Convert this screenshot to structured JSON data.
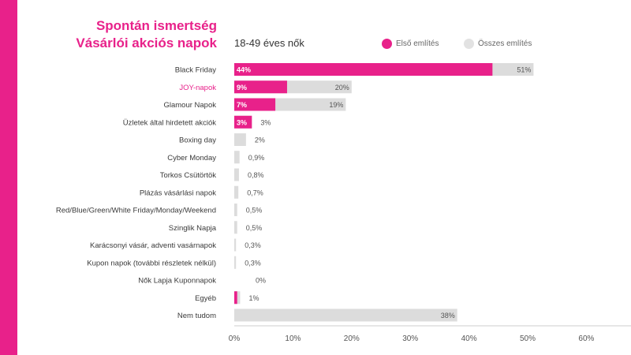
{
  "header": {
    "title_line1": "Spontán ismertség",
    "title_line2": "Vásárlói akciós napok",
    "subtitle": "18-49 éves nők"
  },
  "colors": {
    "accent": "#e8218a",
    "total": "#dcdcdc",
    "text": "#3a3a3a"
  },
  "chart_data": {
    "type": "bar",
    "orientation": "horizontal",
    "categories": [
      "Black Friday",
      "JOY-napok",
      "Glamour Napok",
      "Üzletek által hirdetett akciók",
      "Boxing day",
      "Cyber Monday",
      "Torkos Csütörtök",
      "Plázás vásárlási napok",
      "Red/Blue/Green/White Friday/Monday/Weekend",
      "Szinglik Napja",
      "Karácsonyi vásár, adventi vasárnapok",
      "Kupon napok (további részletek nélkül)",
      "Nők Lapja Kuponnapok",
      "Egyéb",
      "Nem tudom"
    ],
    "highlight_category": "JOY-napok",
    "series": [
      {
        "name": "Első említés",
        "color": "#e8218a",
        "values": [
          44,
          9,
          7,
          3,
          null,
          null,
          null,
          null,
          null,
          null,
          null,
          null,
          null,
          0.5,
          null
        ],
        "labels": [
          "44%",
          "9%",
          "7%",
          "3%",
          "",
          "",
          "",
          "",
          "",
          "",
          "",
          "",
          "",
          "",
          ""
        ]
      },
      {
        "name": "Összes említés",
        "color": "#dcdcdc",
        "values": [
          51,
          20,
          19,
          3,
          2,
          0.9,
          0.8,
          0.7,
          0.5,
          0.5,
          0.3,
          0.3,
          0,
          1,
          38
        ],
        "labels": [
          "51%",
          "20%",
          "19%",
          "3%",
          "2%",
          "0,9%",
          "0,8%",
          "0,7%",
          "0,5%",
          "0,5%",
          "0,3%",
          "0,3%",
          "0%",
          "1%",
          "38%"
        ]
      }
    ],
    "xlim": [
      0,
      60
    ],
    "x_ticks": [
      0,
      10,
      20,
      30,
      40,
      50,
      60
    ],
    "x_tick_labels": [
      "0%",
      "10%",
      "20%",
      "30%",
      "40%",
      "50%",
      "60%"
    ],
    "legend_position": "top-right",
    "grid": false
  }
}
